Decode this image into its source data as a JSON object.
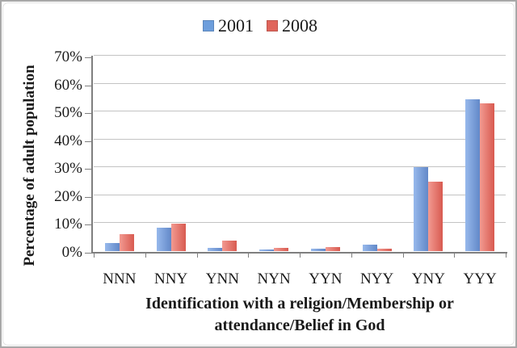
{
  "chart_data": {
    "type": "bar",
    "title": "",
    "categories": [
      "NNN",
      "NNY",
      "YNN",
      "NYN",
      "YYN",
      "NYY",
      "YNY",
      "YYY"
    ],
    "series": [
      {
        "name": "2001",
        "values": [
          2.9,
          8.3,
          1.2,
          0.6,
          1.0,
          2.2,
          30,
          54.5
        ],
        "color": "#6d9edc",
        "color_light": "#97b9ec",
        "color_dark": "#6288c8"
      },
      {
        "name": "2008",
        "values": [
          6.0,
          9.8,
          3.9,
          1.2,
          1.5,
          0.8,
          25,
          53
        ],
        "color": "#e0655b",
        "color_light": "#f29a91",
        "color_dark": "#d85a50"
      }
    ],
    "ylabel": "Percentage of adult population",
    "xlabel": "Identification with a religion/Membership or attendance/Belief in God",
    "xlabel_lines": [
      "Identification with a religion/Membership or",
      "attendance/Belief in God"
    ],
    "y_ticks": [
      "0%",
      "10%",
      "20%",
      "30%",
      "40%",
      "50%",
      "60%",
      "70%"
    ],
    "ylim": [
      0,
      70
    ],
    "grid": true,
    "legend_position": "top-center",
    "axis_color": "#7f7f7f",
    "grid_color": "#c3c3c3",
    "text_color": "#1a1a1a"
  }
}
